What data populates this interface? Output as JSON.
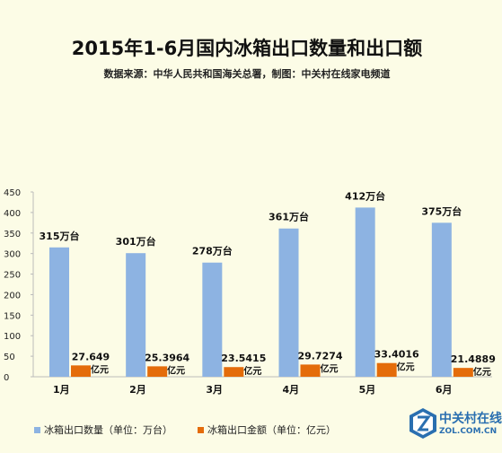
{
  "title": "2015年1-6月国内冰箱出口数量和出口额",
  "subtitle": "数据来源：中华人民共和国海关总署，制图：中关村在线家电频道",
  "legend": {
    "series1": "冰箱出口数量（单位：万台）",
    "series2": "冰箱出口金额（单位：亿元）"
  },
  "colors": {
    "series1": "#8db3e2",
    "series2": "#e46c0a",
    "background": "#fcfce6"
  },
  "logo": {
    "cn": "中关村在线",
    "en": "ZOL.COM.CN",
    "icon": "zol-logo-icon"
  },
  "chart_data": {
    "type": "bar",
    "categories": [
      "1月",
      "2月",
      "3月",
      "4月",
      "5月",
      "6月"
    ],
    "series": [
      {
        "name": "冰箱出口数量（单位：万台）",
        "values": [
          315,
          301,
          278,
          361,
          412,
          375
        ],
        "labels": [
          "315万台",
          "301万台",
          "278万台",
          "361万台",
          "412万台",
          "375万台"
        ]
      },
      {
        "name": "冰箱出口金额（单位：亿元）",
        "values": [
          27.649,
          25.3964,
          23.5415,
          29.7274,
          33.4016,
          21.4889
        ],
        "labels": [
          "27.649",
          "25.3964",
          "23.5415",
          "29.7274",
          "33.4016",
          "21.4889"
        ],
        "unit_label": "亿元"
      }
    ],
    "yticks": [
      "0",
      "50",
      "100",
      "150",
      "200",
      "250",
      "300",
      "350",
      "400",
      "450"
    ],
    "ylim": [
      0,
      450
    ],
    "grid": false
  }
}
